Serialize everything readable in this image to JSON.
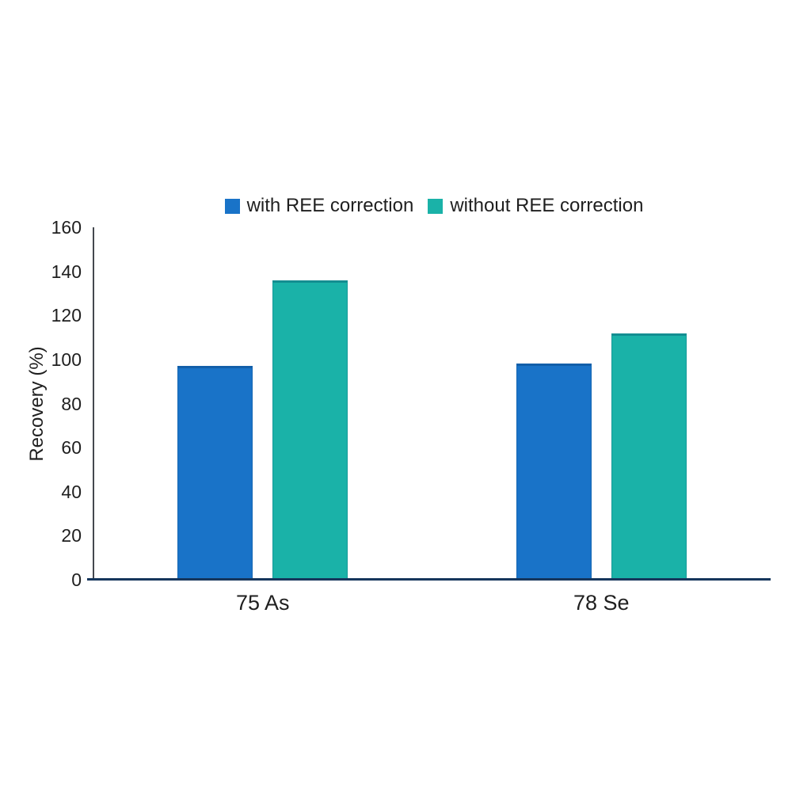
{
  "chart_data": {
    "type": "bar",
    "title": "",
    "xlabel": "",
    "ylabel": "Recovery (%)",
    "categories": [
      "75 As",
      "78 Se"
    ],
    "series": [
      {
        "name": "with REE correction",
        "color": "#1973c8",
        "border_color": "#115fa0",
        "values": [
          97,
          98
        ]
      },
      {
        "name": "without REE correction",
        "color": "#1ab2a8",
        "border_color": "#0e968e",
        "values": [
          136,
          112
        ]
      }
    ],
    "ylim": [
      0,
      160
    ],
    "yticks": [
      0,
      20,
      40,
      60,
      80,
      100,
      120,
      140,
      160
    ],
    "grid": false,
    "legend_position": "top-center"
  },
  "colors": {
    "background": "#ffffff",
    "x_axis_line": "#16365c",
    "y_axis_line": "#44484e",
    "text": "#1f1f1f"
  }
}
